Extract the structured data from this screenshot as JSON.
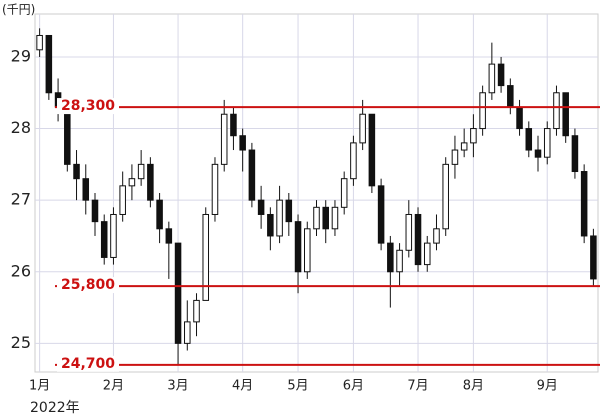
{
  "chart_data": {
    "type": "candlestick",
    "y_unit": "(千円)",
    "x_sublabel": "2022年",
    "categories": [
      "1月",
      null,
      null,
      null,
      null,
      null,
      null,
      null,
      "2月",
      null,
      null,
      null,
      null,
      null,
      null,
      "3月",
      null,
      null,
      null,
      null,
      null,
      null,
      "4月",
      null,
      null,
      null,
      null,
      null,
      "5月",
      null,
      null,
      null,
      null,
      null,
      "6月",
      null,
      null,
      null,
      null,
      null,
      null,
      "7月",
      null,
      null,
      null,
      null,
      null,
      "8月",
      null,
      null,
      null,
      null,
      null,
      null,
      null,
      "9月",
      null,
      null,
      null,
      null,
      null
    ],
    "open": [
      29.1,
      29.3,
      28.5,
      28.3,
      27.5,
      27.3,
      27.0,
      26.7,
      26.2,
      26.8,
      27.2,
      27.3,
      27.5,
      27.0,
      26.6,
      26.4,
      25.0,
      25.3,
      25.6,
      26.8,
      27.5,
      28.2,
      27.9,
      27.7,
      27.0,
      26.8,
      26.5,
      27.0,
      26.7,
      26.0,
      26.6,
      26.9,
      26.6,
      26.9,
      27.3,
      27.8,
      28.2,
      27.2,
      26.4,
      26.0,
      26.3,
      26.8,
      26.1,
      26.4,
      26.6,
      27.5,
      27.7,
      27.8,
      28.0,
      28.5,
      28.9,
      28.6,
      28.3,
      28.0,
      27.7,
      27.6,
      28.0,
      28.5,
      27.9,
      27.4,
      26.5
    ],
    "high": [
      29.4,
      29.3,
      28.7,
      28.4,
      27.7,
      27.5,
      27.1,
      26.8,
      26.9,
      27.4,
      27.5,
      27.7,
      27.6,
      27.1,
      26.7,
      26.4,
      25.6,
      25.7,
      26.9,
      27.6,
      28.4,
      28.3,
      28.0,
      27.8,
      27.2,
      26.9,
      27.2,
      27.1,
      26.8,
      26.7,
      27.0,
      27.0,
      27.0,
      27.4,
      27.9,
      28.4,
      28.2,
      27.3,
      26.5,
      26.4,
      27.0,
      26.9,
      26.5,
      26.8,
      27.6,
      27.9,
      28.0,
      28.2,
      28.6,
      29.2,
      29.0,
      28.7,
      28.4,
      28.1,
      27.9,
      28.1,
      28.6,
      28.5,
      28.0,
      27.5,
      26.6
    ],
    "low": [
      29.0,
      28.4,
      28.1,
      27.4,
      27.0,
      26.8,
      26.5,
      26.1,
      26.1,
      26.7,
      27.0,
      27.2,
      26.9,
      26.4,
      25.9,
      24.7,
      24.9,
      25.1,
      25.6,
      26.7,
      27.4,
      27.7,
      27.4,
      26.9,
      26.6,
      26.3,
      26.4,
      26.5,
      25.7,
      25.9,
      26.5,
      26.4,
      26.5,
      26.8,
      27.2,
      27.7,
      27.1,
      26.3,
      25.5,
      25.8,
      26.2,
      26.0,
      26.0,
      26.3,
      26.5,
      27.3,
      27.6,
      27.6,
      27.9,
      28.4,
      28.5,
      28.2,
      27.9,
      27.6,
      27.4,
      27.5,
      27.9,
      27.8,
      27.3,
      26.4,
      25.8
    ],
    "close": [
      29.3,
      28.5,
      28.3,
      27.5,
      27.3,
      27.0,
      26.7,
      26.2,
      26.8,
      27.2,
      27.3,
      27.5,
      27.0,
      26.6,
      26.4,
      25.0,
      25.3,
      25.6,
      26.8,
      27.5,
      28.2,
      27.9,
      27.7,
      27.0,
      26.8,
      26.5,
      27.0,
      26.7,
      26.0,
      26.6,
      26.9,
      26.6,
      26.9,
      27.3,
      27.8,
      28.2,
      27.2,
      26.4,
      26.0,
      26.3,
      26.8,
      26.1,
      26.4,
      26.6,
      27.5,
      27.7,
      27.8,
      28.0,
      28.5,
      28.9,
      28.6,
      28.3,
      28.0,
      27.7,
      27.6,
      28.0,
      28.5,
      27.9,
      27.4,
      26.5,
      25.9
    ],
    "up_color": "#ffffff",
    "down_color": "#111111",
    "ylim": [
      24.6,
      29.6
    ],
    "yticks": [
      25,
      26,
      27,
      28,
      29
    ],
    "grid": true,
    "hlines": [
      {
        "value": 28.3,
        "label": "28,300"
      },
      {
        "value": 25.8,
        "label": "25,800"
      },
      {
        "value": 24.7,
        "label": "24,700"
      }
    ],
    "hline_color": "#cc1111"
  }
}
